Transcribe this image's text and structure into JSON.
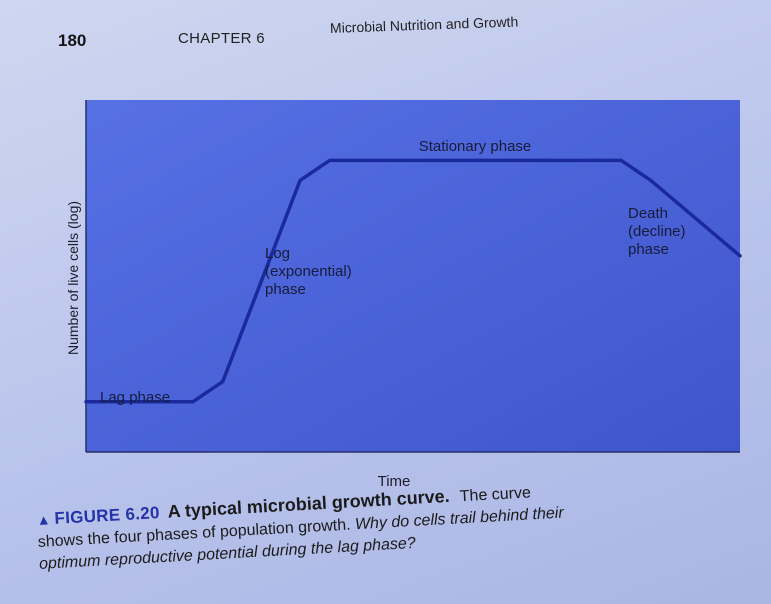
{
  "header": {
    "page_number": "180",
    "chapter": "CHAPTER 6",
    "chapter_title": "Microbial Nutrition and Growth"
  },
  "chart_data": {
    "type": "line",
    "xlabel": "Time",
    "ylabel": "Number of live cells (log)",
    "grid": false,
    "legend": "none",
    "series": [
      {
        "name": "",
        "x": [
          0,
          1.8,
          2.3,
          3.6,
          4.1,
          9.0,
          9.5,
          11.0
        ],
        "y": [
          1.0,
          1.0,
          1.4,
          5.4,
          5.8,
          5.8,
          5.4,
          3.9
        ]
      }
    ],
    "xlim": [
      0,
      11.0
    ],
    "ylim": [
      0,
      7.0
    ],
    "annotations": [
      {
        "id": "lag",
        "lines": [
          "Lag phase"
        ]
      },
      {
        "id": "log",
        "lines": [
          "Log",
          "(exponential)",
          "phase"
        ]
      },
      {
        "id": "stationary",
        "lines": [
          "Stationary phase"
        ]
      },
      {
        "id": "death",
        "lines": [
          "Death",
          "(decline)",
          "phase"
        ]
      }
    ],
    "colors": {
      "curve": "#1a2a9c",
      "plot_bg": "#4a62d8"
    }
  },
  "caption": {
    "arrow": "▲",
    "figure_label": "FIGURE 6.20",
    "figure_title": "A typical microbial growth curve.",
    "text_part1": "The curve",
    "text_part2": "shows the four phases of population growth.",
    "question_part1": "Why do cells trail behind their",
    "question_part2": "optimum reproductive potential during the lag phase?"
  }
}
